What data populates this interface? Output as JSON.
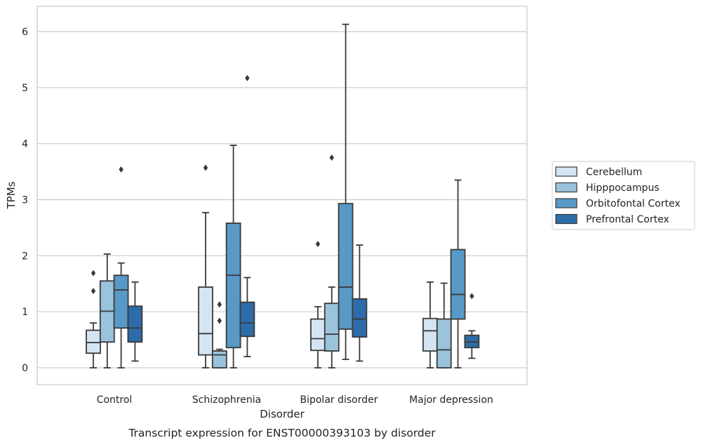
{
  "chart_data": {
    "type": "box",
    "xlabel": "Disorder",
    "ylabel": "TPMs",
    "caption": "Transcript expression for ENST00000393103 by disorder",
    "ylim": [
      -0.3,
      6.45
    ],
    "yticks": [
      0,
      1,
      2,
      3,
      4,
      5,
      6
    ],
    "grid": "horizontal",
    "legend_position": "right",
    "categories": [
      "Control",
      "Schizophrenia",
      "Bipolar disorder",
      "Major depression"
    ],
    "series": [
      {
        "name": "Cerebellum",
        "color": "#d4e4f2",
        "boxes": [
          {
            "whisker_low": 0,
            "q1": 0.26,
            "median": 0.45,
            "q3": 0.67,
            "whisker_high": 0.8,
            "outliers": [
              1.37,
              1.69
            ]
          },
          {
            "whisker_low": 0,
            "q1": 0.23,
            "median": 0.61,
            "q3": 1.44,
            "whisker_high": 2.77,
            "outliers": [
              3.57
            ]
          },
          {
            "whisker_low": 0,
            "q1": 0.31,
            "median": 0.52,
            "q3": 0.87,
            "whisker_high": 1.09,
            "outliers": [
              2.21
            ]
          },
          {
            "whisker_low": 0,
            "q1": 0.3,
            "median": 0.66,
            "q3": 0.88,
            "whisker_high": 1.53,
            "outliers": []
          }
        ]
      },
      {
        "name": "Hipppocampus",
        "color": "#9ac3dc",
        "boxes": [
          {
            "whisker_low": 0,
            "q1": 0.46,
            "median": 1.01,
            "q3": 1.55,
            "whisker_high": 2.03,
            "outliers": []
          },
          {
            "whisker_low": 0,
            "q1": 0.0,
            "median": 0.23,
            "q3": 0.3,
            "whisker_high": 0.33,
            "outliers": [
              0.84,
              1.13
            ]
          },
          {
            "whisker_low": 0,
            "q1": 0.3,
            "median": 0.6,
            "q3": 1.15,
            "whisker_high": 1.44,
            "outliers": [
              3.75
            ]
          },
          {
            "whisker_low": 0,
            "q1": 0.0,
            "median": 0.32,
            "q3": 0.87,
            "whisker_high": 1.51,
            "outliers": []
          }
        ]
      },
      {
        "name": "Orbitofontal Cortex",
        "color": "#5899c7",
        "boxes": [
          {
            "whisker_low": 0,
            "q1": 0.71,
            "median": 1.39,
            "q3": 1.65,
            "whisker_high": 1.87,
            "outliers": [
              3.54
            ]
          },
          {
            "whisker_low": 0,
            "q1": 0.36,
            "median": 1.65,
            "q3": 2.58,
            "whisker_high": 3.97,
            "outliers": []
          },
          {
            "whisker_low": 0.15,
            "q1": 0.69,
            "median": 1.44,
            "q3": 2.93,
            "whisker_high": 6.13,
            "outliers": []
          },
          {
            "whisker_low": 0,
            "q1": 0.87,
            "median": 1.31,
            "q3": 2.11,
            "whisker_high": 3.35,
            "outliers": []
          }
        ]
      },
      {
        "name": "Prefrontal Cortex",
        "color": "#2c6ca8",
        "boxes": [
          {
            "whisker_low": 0.12,
            "q1": 0.46,
            "median": 0.71,
            "q3": 1.1,
            "whisker_high": 1.53,
            "outliers": []
          },
          {
            "whisker_low": 0.2,
            "q1": 0.56,
            "median": 0.8,
            "q3": 1.17,
            "whisker_high": 1.61,
            "outliers": [
              5.17
            ]
          },
          {
            "whisker_low": 0.12,
            "q1": 0.55,
            "median": 0.87,
            "q3": 1.23,
            "whisker_high": 2.19,
            "outliers": []
          },
          {
            "whisker_low": 0.17,
            "q1": 0.36,
            "median": 0.46,
            "q3": 0.58,
            "whisker_high": 0.66,
            "outliers": [
              1.28
            ]
          }
        ]
      }
    ]
  }
}
